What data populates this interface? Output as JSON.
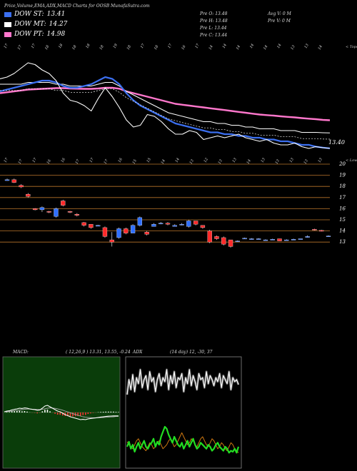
{
  "header": {
    "title": "Price,Volume,EMA,ADX,MACD Charts for OOSB MunafaSutra.com",
    "legend": [
      {
        "label": "DOW ST:",
        "value": "13.41",
        "color": "#3b6ff0"
      },
      {
        "label": "DOW MT:",
        "value": "14.27",
        "color": "#ffffff"
      },
      {
        "label": "DOW PT:",
        "value": "14.98",
        "color": "#ff77cc"
      }
    ],
    "ohlc": [
      {
        "label": "Pre O:",
        "value": "13.48"
      },
      {
        "label": "Pre H:",
        "value": "13.48"
      },
      {
        "label": "Pre L:",
        "value": "13.44"
      },
      {
        "label": "Pre C:",
        "value": "13.44"
      }
    ],
    "avg_volume": "Avg V: 0 M",
    "prev_volume": "Pre V: 0 M"
  },
  "chart_data": [
    {
      "type": "line",
      "name": "ema-panel",
      "top_label": "< Tops",
      "last_price_label": "13.40",
      "top_tick_labels": [
        "17",
        "17",
        "17",
        "18",
        "18",
        "18",
        "18",
        "18",
        "19",
        "18",
        "17",
        "18",
        "17",
        "16",
        "17",
        "14",
        "14",
        "14",
        "14",
        "14",
        "14",
        "13",
        "13",
        "14"
      ],
      "series": [
        {
          "name": "Price",
          "color": "#ffffff",
          "values": [
            17.3,
            17.4,
            17.6,
            17.9,
            18.2,
            18.1,
            17.8,
            17.6,
            17.2,
            16.5,
            16.1,
            16.0,
            15.8,
            15.5,
            16.2,
            16.8,
            16.3,
            15.7,
            15.0,
            14.6,
            14.7,
            15.3,
            15.2,
            14.9,
            14.5,
            14.2,
            14.2,
            14.4,
            14.3,
            13.9,
            14.0,
            14.1,
            14.0,
            14.1,
            14.2,
            14.0,
            13.9,
            13.8,
            13.9,
            13.7,
            13.6,
            13.6,
            13.7,
            13.5,
            13.4,
            13.5,
            13.44,
            13.4
          ]
        },
        {
          "name": "DOW ST",
          "color": "#3b6ff0",
          "values": [
            16.6,
            16.7,
            16.8,
            16.9,
            17.0,
            17.1,
            17.2,
            17.2,
            17.1,
            16.9,
            16.8,
            16.8,
            16.9,
            17.0,
            17.2,
            17.4,
            17.3,
            17.0,
            16.5,
            16.1,
            15.8,
            15.6,
            15.4,
            15.2,
            15.0,
            14.8,
            14.7,
            14.6,
            14.5,
            14.4,
            14.3,
            14.3,
            14.2,
            14.2,
            14.1,
            14.1,
            14.0,
            14.0,
            13.9,
            13.9,
            13.8,
            13.8,
            13.7,
            13.6,
            13.6,
            13.5,
            13.45,
            13.41
          ]
        },
        {
          "name": "DOW MT",
          "color": "#ffffff",
          "values": [
            17.0,
            17.0,
            17.0,
            17.0,
            17.1,
            17.1,
            17.1,
            17.1,
            17.0,
            17.0,
            16.9,
            16.9,
            16.9,
            16.9,
            17.0,
            17.1,
            17.1,
            16.9,
            16.6,
            16.4,
            16.2,
            16.0,
            15.8,
            15.6,
            15.4,
            15.3,
            15.2,
            15.1,
            15.0,
            14.9,
            14.9,
            14.8,
            14.8,
            14.7,
            14.7,
            14.6,
            14.6,
            14.5,
            14.5,
            14.5,
            14.4,
            14.4,
            14.4,
            14.3,
            14.3,
            14.3,
            14.28,
            14.27
          ]
        },
        {
          "name": "DOW PT",
          "color": "#ff77cc",
          "values": [
            16.5,
            16.55,
            16.6,
            16.65,
            16.7,
            16.72,
            16.74,
            16.76,
            16.78,
            16.78,
            16.76,
            16.75,
            16.74,
            16.74,
            16.76,
            16.8,
            16.8,
            16.75,
            16.6,
            16.5,
            16.4,
            16.3,
            16.2,
            16.1,
            16.0,
            15.9,
            15.85,
            15.8,
            15.75,
            15.7,
            15.65,
            15.6,
            15.55,
            15.5,
            15.45,
            15.4,
            15.35,
            15.3,
            15.27,
            15.24,
            15.2,
            15.17,
            15.14,
            15.1,
            15.07,
            15.04,
            15.0,
            14.98
          ]
        }
      ]
    },
    {
      "type": "candlestick",
      "name": "price-panel",
      "top_label": "< Lows",
      "y_tick_labels": [
        "20",
        "19",
        "18",
        "17",
        "16",
        "15",
        "14",
        "13"
      ],
      "low_tick_labels": [
        "17",
        "17",
        "17",
        "16",
        "16",
        "17",
        "17",
        "17",
        "16",
        "15",
        "15",
        "14",
        "14",
        "13",
        "12",
        "13",
        "13",
        "14",
        "13",
        "13",
        "13",
        "13",
        "13"
      ],
      "candles": [
        {
          "o": 18.6,
          "h": 18.7,
          "l": 18.5,
          "c": 18.6
        },
        {
          "o": 18.6,
          "h": 18.7,
          "l": 18.3,
          "c": 18.35
        },
        {
          "o": 18.1,
          "h": 18.2,
          "l": 17.85,
          "c": 17.95
        },
        {
          "o": 17.3,
          "h": 17.4,
          "l": 17.0,
          "c": 17.1
        },
        {
          "o": 16.0,
          "h": 16.05,
          "l": 15.85,
          "c": 15.9
        },
        {
          "o": 15.9,
          "h": 16.2,
          "l": 15.7,
          "c": 16.1
        },
        {
          "o": 15.75,
          "h": 15.8,
          "l": 15.6,
          "c": 15.7
        },
        {
          "o": 15.3,
          "h": 16.1,
          "l": 15.2,
          "c": 16.0
        },
        {
          "o": 16.7,
          "h": 16.8,
          "l": 16.2,
          "c": 16.3
        },
        {
          "o": 15.75,
          "h": 15.8,
          "l": 15.6,
          "c": 15.7
        },
        {
          "o": 15.5,
          "h": 15.6,
          "l": 15.3,
          "c": 15.4
        },
        {
          "o": 14.75,
          "h": 14.8,
          "l": 14.4,
          "c": 14.5
        },
        {
          "o": 14.6,
          "h": 14.6,
          "l": 14.2,
          "c": 14.3
        },
        {
          "o": 14.5,
          "h": 14.55,
          "l": 14.45,
          "c": 14.5
        },
        {
          "o": 14.3,
          "h": 14.4,
          "l": 13.4,
          "c": 13.5
        },
        {
          "o": 13.2,
          "h": 13.9,
          "l": 12.6,
          "c": 13.0
        },
        {
          "o": 13.4,
          "h": 14.3,
          "l": 13.3,
          "c": 14.2
        },
        {
          "o": 14.2,
          "h": 14.3,
          "l": 13.7,
          "c": 13.8
        },
        {
          "o": 13.8,
          "h": 14.6,
          "l": 13.8,
          "c": 14.5
        },
        {
          "o": 14.5,
          "h": 15.3,
          "l": 14.4,
          "c": 15.2
        },
        {
          "o": 13.9,
          "h": 14.0,
          "l": 13.6,
          "c": 13.7
        },
        {
          "o": 14.4,
          "h": 14.7,
          "l": 14.4,
          "c": 14.6
        },
        {
          "o": 14.7,
          "h": 14.8,
          "l": 14.6,
          "c": 14.7
        },
        {
          "o": 14.7,
          "h": 14.8,
          "l": 14.5,
          "c": 14.6
        },
        {
          "o": 14.4,
          "h": 14.6,
          "l": 14.4,
          "c": 14.5
        },
        {
          "o": 14.6,
          "h": 14.7,
          "l": 14.5,
          "c": 14.6
        },
        {
          "o": 14.4,
          "h": 15.0,
          "l": 14.3,
          "c": 14.9
        },
        {
          "o": 14.9,
          "h": 14.9,
          "l": 14.5,
          "c": 14.6
        },
        {
          "o": 14.5,
          "h": 14.5,
          "l": 14.2,
          "c": 14.3
        },
        {
          "o": 14.0,
          "h": 14.1,
          "l": 12.9,
          "c": 13.0
        },
        {
          "o": 13.5,
          "h": 13.6,
          "l": 13.2,
          "c": 13.3
        },
        {
          "o": 13.4,
          "h": 13.5,
          "l": 12.7,
          "c": 12.8
        },
        {
          "o": 13.2,
          "h": 13.2,
          "l": 12.5,
          "c": 12.6
        },
        {
          "o": 13.1,
          "h": 13.15,
          "l": 13.05,
          "c": 13.1
        },
        {
          "o": 13.35,
          "h": 13.4,
          "l": 13.3,
          "c": 13.35
        },
        {
          "o": 13.3,
          "h": 13.35,
          "l": 13.25,
          "c": 13.3
        },
        {
          "o": 13.3,
          "h": 13.35,
          "l": 13.25,
          "c": 13.3
        },
        {
          "o": 13.2,
          "h": 13.25,
          "l": 13.15,
          "c": 13.2
        },
        {
          "o": 13.25,
          "h": 13.3,
          "l": 13.2,
          "c": 13.25
        },
        {
          "o": 13.3,
          "h": 13.3,
          "l": 13.1,
          "c": 13.1
        },
        {
          "o": 13.2,
          "h": 13.25,
          "l": 13.15,
          "c": 13.2
        },
        {
          "o": 13.25,
          "h": 13.3,
          "l": 13.2,
          "c": 13.25
        },
        {
          "o": 13.3,
          "h": 13.3,
          "l": 13.25,
          "c": 13.3
        },
        {
          "o": 13.5,
          "h": 13.6,
          "l": 13.4,
          "c": 13.5
        },
        {
          "o": 14.15,
          "h": 14.2,
          "l": 14.05,
          "c": 14.1
        },
        {
          "o": 14.05,
          "h": 14.1,
          "l": 13.95,
          "c": 14.0
        },
        {
          "o": 13.55,
          "h": 13.6,
          "l": 13.5,
          "c": 13.55
        }
      ]
    },
    {
      "type": "line",
      "name": "macd-panel",
      "title": "MACD:",
      "params": "( 12,26,9 ) 13.31, 13.55, -0.24",
      "series": [
        {
          "name": "MACD",
          "color": "#ffffff",
          "values": [
            0.05,
            0.1,
            0.12,
            0.18,
            0.22,
            0.25,
            0.3,
            0.28,
            0.32,
            0.3,
            0.25,
            0.22,
            0.2,
            0.15,
            0.18,
            0.3,
            0.45,
            0.5,
            0.4,
            0.3,
            0.2,
            0.1,
            0.05,
            -0.05,
            -0.15,
            -0.22,
            -0.3,
            -0.35,
            -0.4,
            -0.45,
            -0.5,
            -0.48,
            -0.5,
            -0.45,
            -0.42,
            -0.4,
            -0.38,
            -0.35,
            -0.32,
            -0.3,
            -0.28,
            -0.26,
            -0.25,
            -0.24,
            -0.24,
            -0.24
          ]
        },
        {
          "name": "Signal",
          "color": "#aaaaaa",
          "values": [
            0.05,
            0.06,
            0.08,
            0.1,
            0.13,
            0.15,
            0.18,
            0.2,
            0.22,
            0.24,
            0.24,
            0.23,
            0.22,
            0.21,
            0.2,
            0.22,
            0.26,
            0.3,
            0.32,
            0.31,
            0.29,
            0.25,
            0.21,
            0.16,
            0.1,
            0.04,
            -0.02,
            -0.08,
            -0.14,
            -0.2,
            -0.25,
            -0.3,
            -0.33,
            -0.35,
            -0.36,
            -0.37,
            -0.37,
            -0.37,
            -0.36,
            -0.35,
            -0.34,
            -0.32,
            -0.31,
            -0.3,
            -0.28,
            -0.27
          ]
        },
        {
          "name": "Histogram",
          "color": "#ff3333",
          "values": [
            0,
            0.04,
            0.04,
            0.08,
            0.09,
            0.1,
            0.12,
            0.08,
            0.1,
            0.06,
            0.01,
            -0.01,
            -0.02,
            -0.06,
            -0.02,
            0.08,
            0.19,
            0.2,
            0.08,
            -0.01,
            -0.09,
            -0.15,
            -0.16,
            -0.21,
            -0.25,
            -0.26,
            -0.28,
            -0.27,
            -0.26,
            -0.25,
            -0.25,
            -0.18,
            -0.17,
            -0.1,
            -0.06,
            -0.03,
            -0.01,
            0.02,
            0.04,
            0.05,
            0.06,
            0.06,
            0.06,
            0.06,
            0.04,
            0.03
          ]
        }
      ]
    },
    {
      "type": "line",
      "name": "adx-panel",
      "title": "ADX",
      "params": "(14 day) 12, -30, 37",
      "series": [
        {
          "name": "+DI",
          "color": "#ffffff",
          "values": [
            55,
            70,
            60,
            75,
            58,
            72,
            66,
            80,
            62,
            70,
            74,
            60,
            78,
            68,
            72,
            58,
            70,
            76,
            64,
            72,
            68,
            80,
            60,
            74,
            66,
            78,
            62,
            72,
            70,
            76,
            58,
            72,
            66,
            80,
            64,
            74,
            68,
            60,
            76,
            70,
            72,
            62,
            78,
            66,
            74,
            70,
            64,
            72,
            68,
            76,
            62,
            74,
            70,
            66,
            78,
            60,
            72,
            68,
            70,
            65
          ]
        },
        {
          "name": "-DI",
          "color": "#22dd22",
          "values": [
            20,
            25,
            18,
            22,
            15,
            20,
            24,
            18,
            22,
            26,
            20,
            18,
            22,
            24,
            28,
            20,
            25,
            22,
            30,
            35,
            40,
            38,
            32,
            28,
            24,
            30,
            26,
            22,
            20,
            24,
            18,
            22,
            26,
            20,
            24,
            28,
            22,
            18,
            20,
            24,
            22,
            20,
            18,
            22,
            20,
            16,
            18,
            22,
            24,
            20,
            18,
            16,
            20,
            18,
            14,
            16,
            15,
            18,
            14,
            20
          ]
        },
        {
          "name": "ADX",
          "color": "#cc7711",
          "values": [
            25,
            22,
            20,
            18,
            22,
            26,
            28,
            24,
            20,
            18,
            16,
            20,
            24,
            22,
            18,
            20,
            24,
            26,
            22,
            18,
            20,
            22,
            26,
            28,
            24,
            20,
            22,
            26,
            30,
            34,
            30,
            26,
            22,
            24,
            28,
            26,
            22,
            20,
            24,
            28,
            30,
            26,
            22,
            20,
            24,
            28,
            26,
            22,
            18,
            20,
            24,
            22,
            18,
            16,
            20,
            24,
            22,
            18,
            16,
            14
          ]
        }
      ]
    }
  ]
}
